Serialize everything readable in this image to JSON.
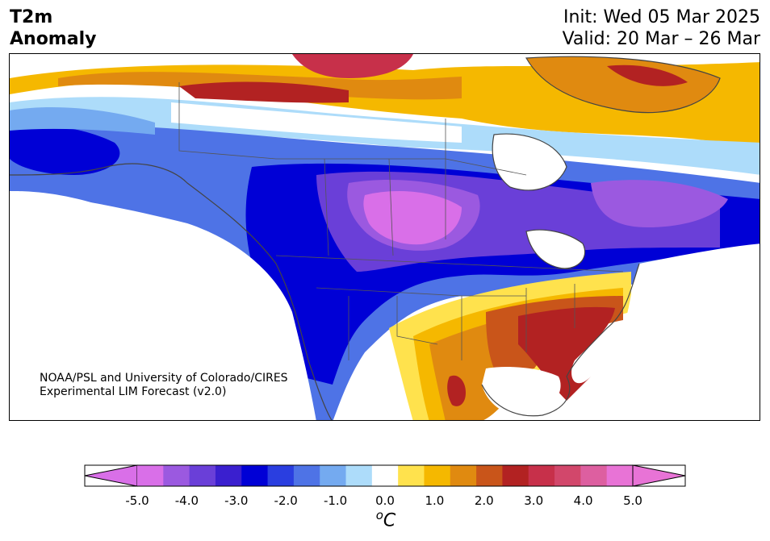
{
  "header": {
    "variable_line1": "T2m",
    "variable_line2": "Anomaly",
    "init": "Init: Wed 05 Mar 2025",
    "valid": "Valid: 20 Mar – 26 Mar"
  },
  "credit": {
    "line1": "NOAA/PSL and University of Colorado/CIRES",
    "line2": "Experimental LIM Forecast (v2.0)"
  },
  "colorbar": {
    "tick_labels": [
      "-5.0",
      "-4.0",
      "-3.0",
      "-2.0",
      "-1.0",
      "0.0",
      "1.0",
      "2.0",
      "3.0",
      "4.0",
      "5.0"
    ],
    "unit_super": "o",
    "unit_main": "C",
    "levels": [
      -5.0,
      -4.5,
      -4.0,
      -3.5,
      -3.0,
      -2.5,
      -2.0,
      -1.5,
      -1.0,
      -0.5,
      0.5,
      1.0,
      1.5,
      2.0,
      2.5,
      3.0,
      3.5,
      4.0,
      4.5,
      5.0
    ],
    "colors": [
      "#d96fe8",
      "#9b59e0",
      "#6a3fd8",
      "#3a1fcf",
      "#0000d6",
      "#2a3ee0",
      "#4e73e6",
      "#74aaf0",
      "#addcfa",
      "#ffffff",
      "#ffe24d",
      "#f5b800",
      "#e08a10",
      "#c9551a",
      "#b22222",
      "#c7304a",
      "#d2476b",
      "#dd5fa0",
      "#e873d6"
    ],
    "under_color": "#d96fe8",
    "over_color": "#e873d6"
  },
  "map": {
    "region": "North America",
    "land_outline_color": "#444444"
  }
}
